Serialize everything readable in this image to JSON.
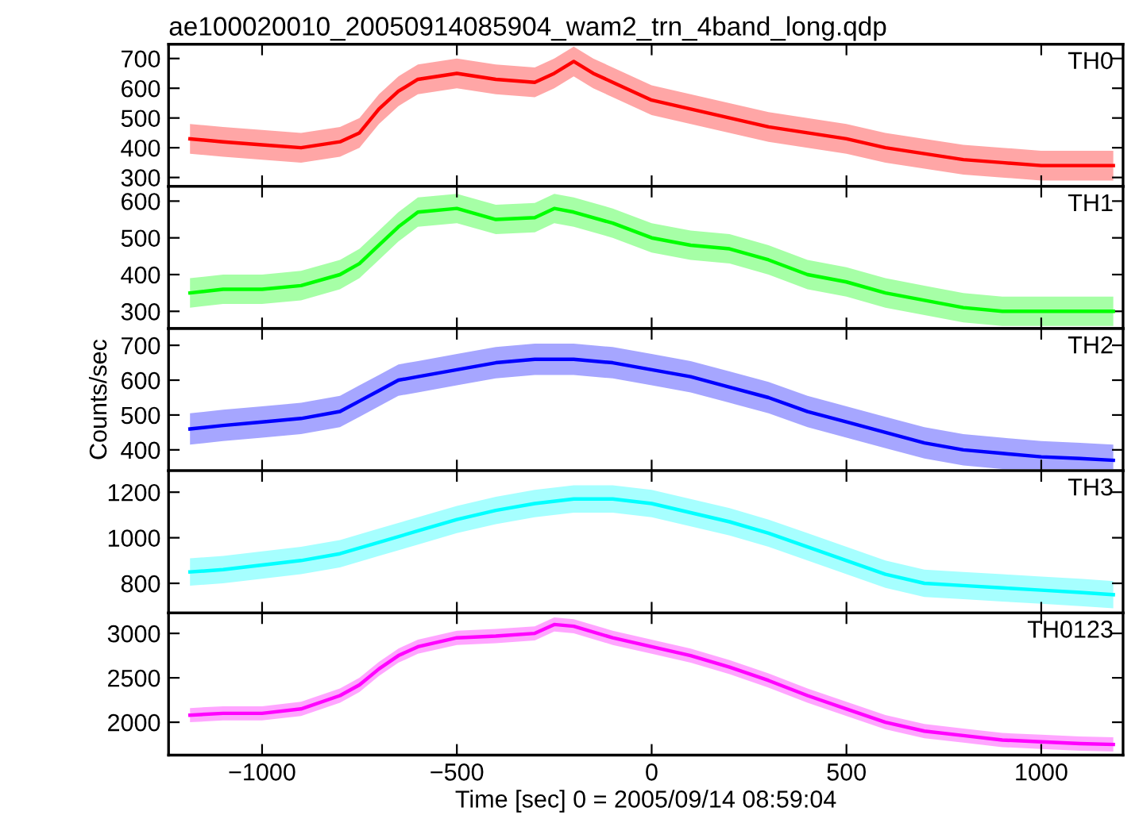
{
  "chart_data": [
    {
      "type": "line",
      "title": "ae100020010_20050914085904_wam2_trn_4band_long.qdp",
      "xlim": [
        -1240,
        1210
      ],
      "xticks": [
        -1000,
        -500,
        0,
        500,
        1000
      ],
      "ylim": [
        270,
        748
      ],
      "yticks": [
        300,
        400,
        500,
        600,
        700
      ],
      "tick_labels": "y",
      "x": [
        -1185,
        -1100,
        -1000,
        -900,
        -800,
        -750,
        -700,
        -650,
        -600,
        -500,
        -400,
        -300,
        -250,
        -200,
        -150,
        -100,
        0,
        100,
        200,
        300,
        400,
        500,
        600,
        700,
        800,
        900,
        1000,
        1100,
        1185
      ],
      "series": [
        {
          "name": "TH0",
          "color": "#ff0000",
          "values": [
            430,
            420,
            410,
            400,
            420,
            450,
            530,
            590,
            630,
            650,
            630,
            620,
            650,
            690,
            650,
            620,
            560,
            530,
            500,
            470,
            450,
            430,
            400,
            380,
            360,
            350,
            340,
            340,
            340
          ],
          "lower": [
            380,
            370,
            360,
            350,
            370,
            400,
            480,
            540,
            580,
            600,
            580,
            570,
            600,
            640,
            600,
            570,
            510,
            480,
            450,
            420,
            400,
            380,
            350,
            330,
            310,
            300,
            290,
            290,
            290
          ],
          "upper": [
            480,
            470,
            460,
            450,
            470,
            500,
            580,
            640,
            680,
            700,
            680,
            670,
            700,
            740,
            700,
            670,
            610,
            580,
            550,
            520,
            500,
            480,
            450,
            430,
            410,
            400,
            390,
            390,
            390
          ]
        }
      ]
    },
    {
      "type": "line",
      "xlim": [
        -1240,
        1210
      ],
      "xticks": [
        -1000,
        -500,
        0,
        500,
        1000
      ],
      "ylim": [
        253,
        640
      ],
      "yticks": [
        300,
        400,
        500,
        600
      ],
      "tick_labels": "y",
      "x": [
        -1185,
        -1100,
        -1000,
        -900,
        -800,
        -750,
        -700,
        -650,
        -600,
        -500,
        -400,
        -300,
        -250,
        -200,
        -100,
        0,
        100,
        200,
        300,
        400,
        500,
        600,
        700,
        800,
        900,
        1000,
        1100,
        1185
      ],
      "series": [
        {
          "name": "TH1",
          "color": "#00ff00",
          "values": [
            350,
            360,
            360,
            370,
            400,
            430,
            480,
            530,
            570,
            580,
            550,
            555,
            580,
            570,
            540,
            500,
            480,
            470,
            440,
            400,
            380,
            350,
            330,
            310,
            300,
            300,
            300,
            300
          ],
          "lower": [
            310,
            320,
            320,
            330,
            360,
            390,
            440,
            490,
            530,
            540,
            510,
            515,
            540,
            530,
            500,
            460,
            440,
            430,
            400,
            360,
            340,
            310,
            290,
            270,
            260,
            260,
            260,
            260
          ],
          "upper": [
            390,
            400,
            400,
            410,
            440,
            470,
            520,
            570,
            610,
            620,
            590,
            595,
            620,
            610,
            580,
            540,
            520,
            510,
            480,
            440,
            420,
            390,
            370,
            350,
            340,
            340,
            340,
            340
          ]
        }
      ]
    },
    {
      "type": "line",
      "ylabel": "Counts/sec",
      "xlim": [
        -1240,
        1210
      ],
      "xticks": [
        -1000,
        -500,
        0,
        500,
        1000
      ],
      "ylim": [
        340,
        748
      ],
      "yticks": [
        400,
        500,
        600,
        700
      ],
      "tick_labels": "y",
      "x": [
        -1185,
        -1100,
        -1000,
        -900,
        -800,
        -750,
        -700,
        -650,
        -600,
        -500,
        -400,
        -300,
        -200,
        -100,
        0,
        100,
        200,
        300,
        400,
        500,
        600,
        700,
        800,
        900,
        1000,
        1100,
        1185
      ],
      "series": [
        {
          "name": "TH2",
          "color": "#0000ff",
          "values": [
            460,
            470,
            480,
            490,
            510,
            540,
            570,
            600,
            610,
            630,
            650,
            660,
            660,
            650,
            630,
            610,
            580,
            550,
            510,
            480,
            450,
            420,
            400,
            390,
            380,
            375,
            370
          ],
          "lower": [
            415,
            425,
            435,
            445,
            465,
            495,
            525,
            555,
            565,
            585,
            605,
            615,
            615,
            605,
            585,
            565,
            535,
            505,
            465,
            435,
            405,
            375,
            355,
            345,
            345,
            345,
            345
          ],
          "upper": [
            505,
            515,
            525,
            535,
            555,
            585,
            615,
            645,
            655,
            675,
            695,
            705,
            705,
            695,
            675,
            655,
            625,
            595,
            555,
            525,
            495,
            465,
            445,
            435,
            425,
            420,
            415
          ]
        }
      ]
    },
    {
      "type": "line",
      "xlim": [
        -1240,
        1210
      ],
      "xticks": [
        -1000,
        -500,
        0,
        500,
        1000
      ],
      "ylim": [
        670,
        1294
      ],
      "yticks": [
        800,
        1000,
        1200
      ],
      "tick_labels": "y",
      "x": [
        -1185,
        -1100,
        -1000,
        -900,
        -800,
        -700,
        -600,
        -500,
        -400,
        -300,
        -200,
        -100,
        0,
        100,
        200,
        300,
        400,
        500,
        600,
        700,
        800,
        900,
        1000,
        1100,
        1185
      ],
      "series": [
        {
          "name": "TH3",
          "color": "#00ffff",
          "values": [
            850,
            860,
            880,
            900,
            930,
            980,
            1030,
            1080,
            1120,
            1150,
            1170,
            1170,
            1150,
            1110,
            1070,
            1020,
            960,
            900,
            840,
            800,
            790,
            780,
            770,
            760,
            750
          ],
          "lower": [
            790,
            800,
            820,
            840,
            870,
            920,
            970,
            1020,
            1060,
            1090,
            1110,
            1110,
            1090,
            1050,
            1010,
            960,
            900,
            840,
            780,
            740,
            730,
            720,
            710,
            700,
            690
          ],
          "upper": [
            910,
            920,
            940,
            960,
            990,
            1040,
            1090,
            1140,
            1180,
            1210,
            1230,
            1230,
            1210,
            1170,
            1130,
            1080,
            1020,
            960,
            900,
            860,
            850,
            840,
            830,
            820,
            810
          ]
        }
      ]
    },
    {
      "type": "line",
      "xlabel": "Time [sec] 0 = 2005/09/14 08:59:04",
      "xlim": [
        -1240,
        1210
      ],
      "xticks": [
        {
          "value": -1000,
          "label": "−1000"
        },
        {
          "value": -500,
          "label": "−500"
        },
        0,
        500,
        1000
      ],
      "ylim": [
        1630,
        3230
      ],
      "yticks": [
        2000,
        2500,
        3000
      ],
      "x": [
        -1185,
        -1100,
        -1000,
        -900,
        -800,
        -750,
        -700,
        -650,
        -600,
        -500,
        -400,
        -300,
        -250,
        -200,
        -100,
        0,
        100,
        200,
        300,
        400,
        500,
        600,
        700,
        800,
        900,
        1000,
        1100,
        1185
      ],
      "series": [
        {
          "name": "TH0123",
          "color": "#ff00ff",
          "values": [
            2080,
            2100,
            2100,
            2150,
            2300,
            2420,
            2600,
            2750,
            2850,
            2950,
            2970,
            3000,
            3100,
            3080,
            2950,
            2850,
            2750,
            2620,
            2470,
            2300,
            2150,
            2000,
            1900,
            1850,
            1800,
            1780,
            1760,
            1750
          ],
          "lower": [
            2000,
            2020,
            2020,
            2070,
            2220,
            2340,
            2520,
            2670,
            2770,
            2870,
            2890,
            2920,
            3020,
            3000,
            2870,
            2770,
            2670,
            2540,
            2390,
            2220,
            2070,
            1920,
            1820,
            1770,
            1720,
            1700,
            1680,
            1670
          ],
          "upper": [
            2160,
            2180,
            2180,
            2230,
            2380,
            2500,
            2680,
            2830,
            2930,
            3030,
            3050,
            3080,
            3180,
            3160,
            3030,
            2930,
            2830,
            2700,
            2550,
            2380,
            2230,
            2080,
            1980,
            1930,
            1880,
            1860,
            1840,
            1830
          ]
        }
      ]
    }
  ]
}
